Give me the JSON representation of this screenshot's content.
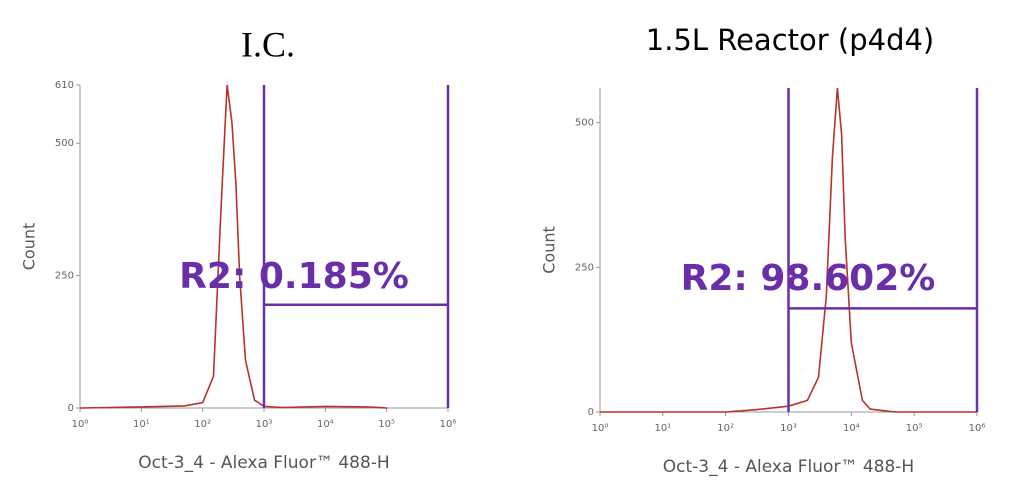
{
  "chart_data": [
    {
      "type": "line",
      "title": "I.C.",
      "xlabel": "Oct-3_4 - Alexa Fluor™ 488-H",
      "ylabel": "Count",
      "xscale": "log",
      "xlim": [
        1,
        1000000
      ],
      "xticks": [
        {
          "value": 1,
          "label": "10⁰"
        },
        {
          "value": 10,
          "label": "10¹"
        },
        {
          "value": 100,
          "label": "10²"
        },
        {
          "value": 1000,
          "label": "10³"
        },
        {
          "value": 10000,
          "label": "10⁴"
        },
        {
          "value": 100000,
          "label": "10⁵"
        },
        {
          "value": 1000000,
          "label": "10⁶"
        }
      ],
      "ylim": [
        0,
        610
      ],
      "yticks": [
        0,
        250,
        500,
        610
      ],
      "series": [
        {
          "color": "#b8332a",
          "x": [
            1,
            10,
            50,
            100,
            150,
            200,
            250,
            300,
            350,
            400,
            500,
            700,
            1000,
            2000,
            10000,
            50000,
            100000
          ],
          "values": [
            0,
            2,
            4,
            10,
            60,
            380,
            610,
            540,
            420,
            250,
            90,
            15,
            3,
            1,
            3,
            2,
            0
          ]
        }
      ],
      "gate": {
        "x": [
          1000,
          1000000
        ],
        "y": 195,
        "color": "#6a2fa8"
      },
      "annotation": "R2: 0.185%"
    },
    {
      "type": "line",
      "title": "1.5L Reactor (p4d4)",
      "xlabel": "Oct-3_4 - Alexa Fluor™ 488-H",
      "ylabel": "Count",
      "xscale": "log",
      "xlim": [
        1,
        1000000
      ],
      "xticks": [
        {
          "value": 1,
          "label": "10⁰"
        },
        {
          "value": 10,
          "label": "10¹"
        },
        {
          "value": 100,
          "label": "10²"
        },
        {
          "value": 1000,
          "label": "10³"
        },
        {
          "value": 10000,
          "label": "10⁴"
        },
        {
          "value": 100000,
          "label": "10⁵"
        },
        {
          "value": 1000000,
          "label": "10⁶"
        }
      ],
      "ylim": [
        0,
        560
      ],
      "yticks": [
        0,
        250,
        500
      ],
      "series": [
        {
          "color": "#b8332a",
          "x": [
            1,
            100,
            300,
            1000,
            2000,
            3000,
            4000,
            5000,
            6000,
            7000,
            8000,
            10000,
            15000,
            20000,
            50000,
            1000000
          ],
          "values": [
            0,
            0,
            4,
            10,
            20,
            60,
            200,
            440,
            560,
            480,
            300,
            120,
            20,
            5,
            0,
            0
          ]
        }
      ],
      "gate": {
        "x": [
          1000,
          1000000
        ],
        "y": 179,
        "color": "#6a2fa8"
      },
      "annotation": "R2: 98.602%"
    }
  ]
}
